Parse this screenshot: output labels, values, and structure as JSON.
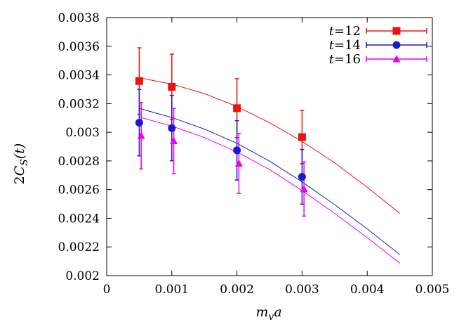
{
  "chart_data": {
    "type": "scatter",
    "title": "",
    "xlabel": "m_v a",
    "ylabel": "2C_S(t)",
    "xlim": [
      0,
      0.005
    ],
    "ylim": [
      0.002,
      0.0038
    ],
    "xticks": [
      0,
      0.001,
      0.002,
      0.003,
      0.004,
      0.005
    ],
    "xtick_labels": [
      "0",
      "0.001",
      "0.002",
      "0.003",
      "0.004",
      "0.005"
    ],
    "yticks": [
      0.002,
      0.0022,
      0.0024,
      0.0026,
      0.0028,
      0.003,
      0.0032,
      0.0034,
      0.0036,
      0.0038
    ],
    "ytick_labels": [
      "0.002",
      "0.0022",
      "0.0024",
      "0.0026",
      "0.0028",
      "0.003",
      "0.0032",
      "0.0034",
      "0.0036",
      "0.0038"
    ],
    "grid": false,
    "legend_position": "top-right",
    "series": [
      {
        "name": "t=12",
        "color": "#ee1111",
        "marker": "square",
        "points": [
          {
            "x": 0.0005,
            "y": 0.003357,
            "err": 0.000232
          },
          {
            "x": 0.001,
            "y": 0.003317,
            "err": 0.000228
          },
          {
            "x": 0.002,
            "y": 0.003168,
            "err": 0.000206
          },
          {
            "x": 0.003,
            "y": 0.002966,
            "err": 0.000186
          }
        ],
        "fit": [
          {
            "x": 0.0005,
            "y": 0.00338
          },
          {
            "x": 0.001,
            "y": 0.003336
          },
          {
            "x": 0.0015,
            "y": 0.00327
          },
          {
            "x": 0.002,
            "y": 0.00318
          },
          {
            "x": 0.0025,
            "y": 0.003067
          },
          {
            "x": 0.003,
            "y": 0.002936
          },
          {
            "x": 0.0035,
            "y": 0.002787
          },
          {
            "x": 0.004,
            "y": 0.002616
          },
          {
            "x": 0.0045,
            "y": 0.002435
          }
        ]
      },
      {
        "name": "t=14",
        "color": "#1a1acc",
        "marker": "circle",
        "points": [
          {
            "x": 0.0005,
            "y": 0.003067,
            "err": 0.000232
          },
          {
            "x": 0.001,
            "y": 0.003029,
            "err": 0.000228
          },
          {
            "x": 0.002,
            "y": 0.002874,
            "err": 0.000207
          },
          {
            "x": 0.003,
            "y": 0.002689,
            "err": 0.000191
          }
        ],
        "fit": [
          {
            "x": 0.0005,
            "y": 0.003167
          },
          {
            "x": 0.001,
            "y": 0.003103
          },
          {
            "x": 0.0015,
            "y": 0.003022
          },
          {
            "x": 0.002,
            "y": 0.002923
          },
          {
            "x": 0.0025,
            "y": 0.002799
          },
          {
            "x": 0.003,
            "y": 0.002654
          },
          {
            "x": 0.0035,
            "y": 0.002495
          },
          {
            "x": 0.004,
            "y": 0.002326
          },
          {
            "x": 0.0045,
            "y": 0.002147
          }
        ]
      },
      {
        "name": "t=16",
        "color": "#ee00ee",
        "marker": "triangle",
        "points": [
          {
            "x": 0.0005,
            "y": 0.002976,
            "err": 0.000232
          },
          {
            "x": 0.001,
            "y": 0.002939,
            "err": 0.000228
          },
          {
            "x": 0.002,
            "y": 0.002782,
            "err": 0.000209
          },
          {
            "x": 0.003,
            "y": 0.002604,
            "err": 0.000189
          }
        ],
        "fit": [
          {
            "x": 0.0005,
            "y": 0.003106
          },
          {
            "x": 0.001,
            "y": 0.003043
          },
          {
            "x": 0.0015,
            "y": 0.002963
          },
          {
            "x": 0.002,
            "y": 0.002862
          },
          {
            "x": 0.0025,
            "y": 0.00274
          },
          {
            "x": 0.003,
            "y": 0.002593
          },
          {
            "x": 0.0035,
            "y": 0.002434
          },
          {
            "x": 0.004,
            "y": 0.002265
          },
          {
            "x": 0.0045,
            "y": 0.002087
          }
        ]
      }
    ]
  }
}
